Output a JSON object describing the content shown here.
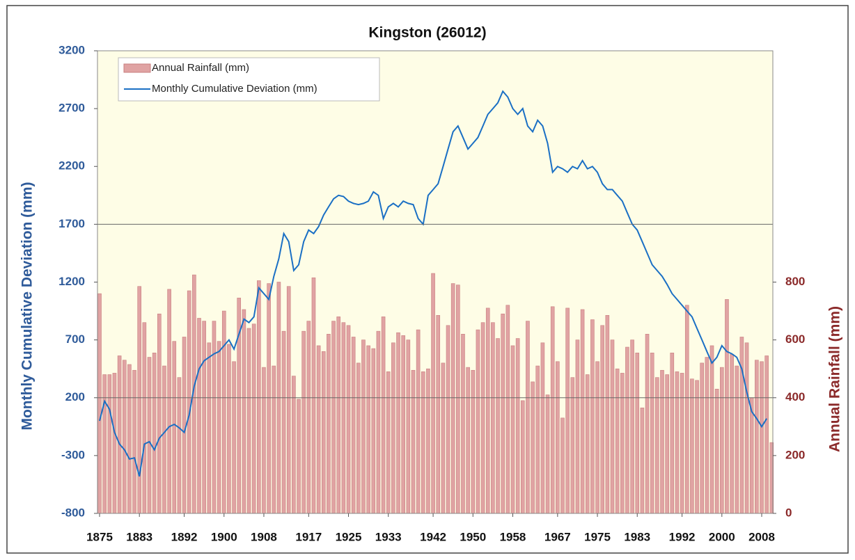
{
  "chart_data": {
    "type": "bar-line",
    "title": "Kingston  (26012)",
    "y_label": "Monthly Cumulative Deviation (mm)",
    "y2_label": "Annual Rainfall (mm)",
    "x": [
      1875,
      1876,
      1877,
      1878,
      1879,
      1880,
      1881,
      1882,
      1883,
      1884,
      1885,
      1886,
      1887,
      1888,
      1889,
      1890,
      1891,
      1892,
      1893,
      1894,
      1895,
      1896,
      1897,
      1898,
      1899,
      1900,
      1901,
      1902,
      1903,
      1904,
      1905,
      1906,
      1907,
      1908,
      1909,
      1910,
      1911,
      1912,
      1913,
      1914,
      1915,
      1916,
      1917,
      1918,
      1919,
      1920,
      1921,
      1922,
      1923,
      1924,
      1925,
      1926,
      1927,
      1928,
      1929,
      1930,
      1931,
      1932,
      1933,
      1934,
      1935,
      1936,
      1937,
      1938,
      1939,
      1940,
      1941,
      1942,
      1943,
      1944,
      1945,
      1946,
      1947,
      1948,
      1949,
      1950,
      1951,
      1952,
      1953,
      1954,
      1955,
      1956,
      1957,
      1958,
      1959,
      1960,
      1961,
      1962,
      1963,
      1964,
      1965,
      1966,
      1967,
      1968,
      1969,
      1970,
      1971,
      1972,
      1973,
      1974,
      1975,
      1976,
      1977,
      1978,
      1979,
      1980,
      1981,
      1982,
      1983,
      1984,
      1985,
      1986,
      1987,
      1988,
      1989,
      1990,
      1991,
      1992,
      1993,
      1994,
      1995,
      1996,
      1997,
      1998,
      1999,
      2000,
      2001,
      2002,
      2003,
      2004,
      2005,
      2006,
      2007,
      2008,
      2009,
      2010
    ],
    "series": [
      {
        "name": "Annual Rainfall (mm)",
        "kind": "bar",
        "axis": "y2",
        "color": "#e0a3a3",
        "values": [
          760,
          480,
          480,
          485,
          545,
          530,
          515,
          495,
          785,
          660,
          540,
          555,
          690,
          510,
          775,
          595,
          470,
          610,
          770,
          825,
          675,
          665,
          590,
          665,
          595,
          700,
          585,
          525,
          745,
          705,
          640,
          655,
          805,
          505,
          795,
          510,
          800,
          630,
          785,
          475,
          395,
          630,
          665,
          815,
          580,
          560,
          620,
          665,
          680,
          660,
          650,
          610,
          520,
          600,
          580,
          570,
          630,
          680,
          490,
          590,
          625,
          615,
          600,
          495,
          635,
          490,
          500,
          830,
          685,
          520,
          650,
          795,
          790,
          620,
          505,
          495,
          635,
          660,
          710,
          660,
          605,
          690,
          720,
          580,
          605,
          390,
          665,
          455,
          510,
          590,
          410,
          715,
          525,
          330,
          710,
          470,
          600,
          705,
          480,
          670,
          525,
          650,
          685,
          600,
          500,
          485,
          575,
          600,
          555,
          365,
          620,
          555,
          470,
          495,
          480,
          555,
          490,
          485,
          720,
          465,
          460,
          520,
          540,
          580,
          430,
          505,
          740,
          550,
          510,
          610,
          590,
          400,
          530,
          525,
          545,
          245
        ]
      },
      {
        "name": "Monthly Cumulative Deviation (mm)",
        "kind": "line",
        "axis": "y",
        "color": "#1a6fc4",
        "values": [
          0,
          170,
          100,
          -100,
          -200,
          -250,
          -330,
          -320,
          -480,
          -200,
          -180,
          -250,
          -150,
          -100,
          -50,
          -30,
          -60,
          -100,
          50,
          300,
          450,
          520,
          550,
          580,
          600,
          650,
          700,
          620,
          750,
          880,
          850,
          900,
          1150,
          1100,
          1050,
          1250,
          1400,
          1620,
          1550,
          1300,
          1350,
          1550,
          1650,
          1620,
          1680,
          1780,
          1850,
          1920,
          1950,
          1940,
          1900,
          1880,
          1870,
          1880,
          1900,
          1980,
          1950,
          1750,
          1850,
          1880,
          1850,
          1900,
          1880,
          1870,
          1750,
          1700,
          1950,
          2000,
          2050,
          2200,
          2350,
          2500,
          2550,
          2450,
          2350,
          2400,
          2450,
          2550,
          2650,
          2700,
          2750,
          2850,
          2800,
          2700,
          2650,
          2700,
          2550,
          2500,
          2600,
          2550,
          2400,
          2150,
          2200,
          2180,
          2150,
          2200,
          2180,
          2250,
          2180,
          2200,
          2150,
          2050,
          2000,
          2000,
          1950,
          1900,
          1800,
          1700,
          1650,
          1550,
          1450,
          1350,
          1300,
          1250,
          1180,
          1100,
          1050,
          1000,
          950,
          900,
          800,
          700,
          600,
          500,
          550,
          650,
          600,
          580,
          550,
          450,
          250,
          80,
          20,
          -50,
          20,
          null
        ]
      }
    ],
    "xlim": [
      1875,
      2011
    ],
    "xticks": [
      1875,
      1883,
      1892,
      1900,
      1908,
      1917,
      1925,
      1933,
      1942,
      1950,
      1958,
      1967,
      1975,
      1983,
      1992,
      2000,
      2008
    ],
    "ylim": [
      -800,
      3200
    ],
    "yticks": [
      -800,
      -300,
      200,
      700,
      1200,
      1700,
      2200,
      2700,
      3200
    ],
    "y2lim": [
      0,
      1600
    ],
    "y2ticks": [
      0,
      200,
      400,
      600,
      800
    ],
    "hlines": [
      200,
      1700
    ],
    "legend": "top-left",
    "background": "#fefde6"
  }
}
